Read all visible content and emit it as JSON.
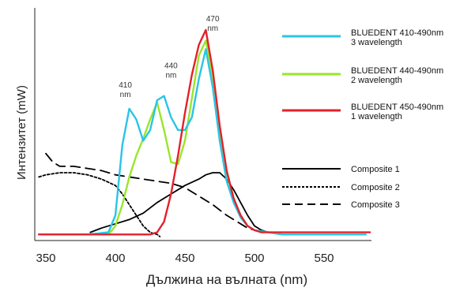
{
  "chart_data": {
    "type": "line",
    "title": "",
    "xlabel": "Дължина на вълната (nm)",
    "ylabel": "Интензитет (mW)",
    "xlim": [
      340,
      585
    ],
    "ylim": [
      0,
      1.0
    ],
    "x_ticks": [
      350,
      400,
      450,
      500,
      550
    ],
    "grid": false,
    "legend_position": "right",
    "annotations": [
      {
        "lines": [
          "410",
          "nm"
        ],
        "x": 410,
        "y": 0.7
      },
      {
        "lines": [
          "440",
          "nm"
        ],
        "x": 440,
        "y": 0.79
      },
      {
        "lines": [
          "470",
          "nm"
        ],
        "x": 470,
        "y": 1.01
      }
    ],
    "series": [
      {
        "name": "BLUEDENT 410-490nm\n3 wavelength",
        "color": "#29c5e6",
        "style": "solid",
        "x": [
          345,
          380,
          395,
          400,
          405,
          410,
          415,
          420,
          425,
          430,
          435,
          440,
          445,
          450,
          455,
          460,
          465,
          470,
          475,
          480,
          485,
          490,
          495,
          500,
          510,
          520,
          550,
          580
        ],
        "y": [
          0.01,
          0.01,
          0.02,
          0.1,
          0.43,
          0.6,
          0.55,
          0.45,
          0.5,
          0.64,
          0.66,
          0.56,
          0.5,
          0.5,
          0.56,
          0.74,
          0.88,
          0.7,
          0.45,
          0.26,
          0.16,
          0.09,
          0.05,
          0.03,
          0.02,
          0.01,
          0.01,
          0.01
        ]
      },
      {
        "name": "BLUEDENT 440-490nm\n2 wavelength",
        "color": "#99e62b",
        "style": "solid",
        "x": [
          345,
          395,
          400,
          405,
          410,
          415,
          420,
          425,
          430,
          435,
          440,
          445,
          450,
          455,
          460,
          465,
          470,
          475,
          480,
          485,
          490,
          495,
          500,
          510,
          520,
          550,
          580
        ],
        "y": [
          0.01,
          0.01,
          0.05,
          0.15,
          0.28,
          0.38,
          0.46,
          0.55,
          0.63,
          0.5,
          0.35,
          0.34,
          0.45,
          0.65,
          0.85,
          0.92,
          0.75,
          0.5,
          0.3,
          0.18,
          0.1,
          0.05,
          0.03,
          0.02,
          0.01,
          0.01,
          0.01
        ]
      },
      {
        "name": "BLUEDENT 450-490nm\n1 wavelength",
        "color": "#e3212b",
        "style": "solid",
        "x": [
          345,
          400,
          425,
          430,
          435,
          440,
          445,
          450,
          455,
          460,
          465,
          470,
          475,
          480,
          485,
          490,
          495,
          500,
          505,
          510,
          520,
          550,
          583
        ],
        "y": [
          0.01,
          0.01,
          0.01,
          0.02,
          0.07,
          0.2,
          0.38,
          0.58,
          0.76,
          0.9,
          0.97,
          0.78,
          0.52,
          0.31,
          0.18,
          0.1,
          0.05,
          0.03,
          0.02,
          0.02,
          0.02,
          0.02,
          0.02
        ]
      },
      {
        "name": "Composite 1",
        "color": "#000000",
        "style": "solid",
        "x": [
          382,
          390,
          400,
          410,
          420,
          430,
          440,
          450,
          460,
          465,
          470,
          475,
          480,
          485,
          490,
          495,
          500,
          505,
          510,
          520,
          525
        ],
        "y": [
          0.02,
          0.04,
          0.06,
          0.08,
          0.11,
          0.16,
          0.2,
          0.24,
          0.27,
          0.29,
          0.3,
          0.3,
          0.27,
          0.22,
          0.16,
          0.1,
          0.05,
          0.03,
          0.02,
          0.01,
          0.01
        ]
      },
      {
        "name": "Composite 2",
        "color": "#000000",
        "style": "dotted",
        "x": [
          345,
          350,
          360,
          370,
          380,
          390,
          400,
          405,
          410,
          415,
          420,
          425,
          430,
          432
        ],
        "y": [
          0.28,
          0.29,
          0.3,
          0.3,
          0.29,
          0.27,
          0.24,
          0.2,
          0.15,
          0.1,
          0.05,
          0.02,
          0.01,
          0.0
        ]
      },
      {
        "name": "Composite 3",
        "color": "#000000",
        "style": "dashed",
        "x": [
          350,
          355,
          360,
          370,
          380,
          390,
          400,
          410,
          420,
          430,
          440,
          450,
          460,
          470,
          480,
          490,
          495,
          500,
          505,
          510
        ],
        "y": [
          0.39,
          0.35,
          0.33,
          0.33,
          0.32,
          0.31,
          0.29,
          0.28,
          0.27,
          0.26,
          0.25,
          0.23,
          0.19,
          0.15,
          0.1,
          0.06,
          0.04,
          0.03,
          0.02,
          0.02
        ]
      }
    ]
  }
}
